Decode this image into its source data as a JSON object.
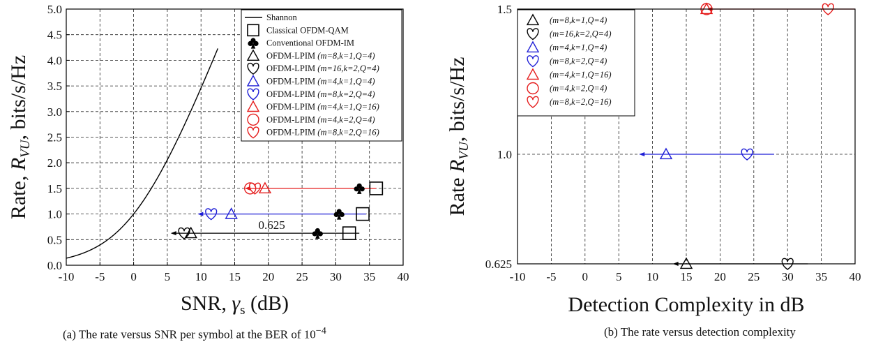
{
  "colors": {
    "black": "#000000",
    "blue": "#1f1fd6",
    "red": "#e51b1b"
  },
  "captions": {
    "a_prefix": "(a) The rate versus SNR per symbol at the BER of 10",
    "a_exp": "−4",
    "b": "(b) The rate versus detection complexity"
  },
  "chart_data": [
    {
      "type": "scatter",
      "ylabel": "Rate, R_VU, bits/s/Hz",
      "xlabel": "SNR, γs (dB)",
      "xlim": [
        -10,
        40
      ],
      "ylim": [
        0,
        5
      ],
      "xticks": [
        "-10",
        "-5",
        "0",
        "5",
        "10",
        "15",
        "20",
        "25",
        "30",
        "35",
        "40"
      ],
      "yticks": [
        "0.0",
        "0.5",
        "1.0",
        "1.5",
        "2.0",
        "2.5",
        "3.0",
        "3.5",
        "4.0",
        "4.5",
        "5.0"
      ],
      "grid": true,
      "legend_position": "top-right",
      "curve": {
        "name": "Shannon",
        "function": "log2(1+snr)"
      },
      "series": [
        {
          "name": "Classical OFDM-QAM",
          "marker": "square",
          "color": "black",
          "points": [
            [
              32.0,
              0.625
            ],
            [
              34.0,
              1.0
            ],
            [
              36.0,
              1.5
            ]
          ]
        },
        {
          "name": "Conventional OFDM-IM",
          "marker": "club",
          "color": "black",
          "points": [
            [
              27.3,
              0.625
            ],
            [
              30.5,
              1.0
            ],
            [
              33.5,
              1.5
            ]
          ]
        },
        {
          "name": "OFDM-LPIM",
          "params": "(m=8,k=1,Q=4)",
          "marker": "triangle",
          "color": "black",
          "points": [
            [
              8.5,
              0.625
            ]
          ]
        },
        {
          "name": "OFDM-LPIM",
          "params": "(m=16,k=2,Q=4)",
          "marker": "heart",
          "color": "black",
          "points": [
            [
              7.5,
              0.625
            ]
          ]
        },
        {
          "name": "OFDM-LPIM",
          "params": "(m=4,k=1,Q=4)",
          "marker": "triangle",
          "color": "blue",
          "points": [
            [
              14.5,
              1.0
            ]
          ]
        },
        {
          "name": "OFDM-LPIM",
          "params": "(m=8,k=2,Q=4)",
          "marker": "heart",
          "color": "blue",
          "points": [
            [
              11.5,
              1.0
            ]
          ]
        },
        {
          "name": "OFDM-LPIM",
          "params": "(m=4,k=1,Q=16)",
          "marker": "triangle",
          "color": "red",
          "points": [
            [
              19.5,
              1.5
            ]
          ]
        },
        {
          "name": "OFDM-LPIM",
          "params": "(m=4,k=2,Q=4)",
          "marker": "circle",
          "color": "red",
          "points": [
            [
              17.3,
              1.5
            ]
          ]
        },
        {
          "name": "OFDM-LPIM",
          "params": "(m=8,k=2,Q=16)",
          "marker": "heart",
          "color": "red",
          "points": [
            [
              18.0,
              1.5
            ]
          ]
        }
      ],
      "arrows": [
        {
          "from": 33.5,
          "to": 5.5,
          "y": 0.625,
          "color": "black"
        },
        {
          "from": 34.5,
          "to": 9.5,
          "y": 1.0,
          "color": "blue"
        },
        {
          "from": 36.0,
          "to": 16.5,
          "y": 1.5,
          "color": "red"
        }
      ],
      "annotations": [
        {
          "text": "0.625",
          "x": 20.5,
          "y": 0.625
        }
      ]
    },
    {
      "type": "scatter",
      "ylabel": "Rate R_VU, bits/s/Hz",
      "xlabel": "Detection Complexity in dB",
      "xlim": [
        -10,
        40
      ],
      "yticks": [
        "0.625",
        "1.0",
        "1.5"
      ],
      "xticks": [
        "-10",
        "-5",
        "0",
        "5",
        "10",
        "15",
        "20",
        "25",
        "30",
        "35",
        "40"
      ],
      "grid": true,
      "legend_position": "top-left",
      "series": [
        {
          "params": "(m=8,k=1,Q=4)",
          "marker": "triangle",
          "color": "black",
          "points": [
            [
              15.0,
              0.625
            ]
          ]
        },
        {
          "params": "(m=16,k=2,Q=4)",
          "marker": "heart",
          "color": "black",
          "points": [
            [
              30.0,
              0.625
            ]
          ]
        },
        {
          "params": "(m=4,k=1,Q=4)",
          "marker": "triangle",
          "color": "blue",
          "points": [
            [
              12.0,
              1.0
            ]
          ]
        },
        {
          "params": "(m=8,k=2,Q=4)",
          "marker": "heart",
          "color": "blue",
          "points": [
            [
              24.0,
              1.0
            ]
          ]
        },
        {
          "params": "(m=4,k=1,Q=16)",
          "marker": "triangle",
          "color": "red",
          "points": [
            [
              18.0,
              1.5
            ]
          ]
        },
        {
          "params": "(m=4,k=2,Q=4)",
          "marker": "circle",
          "color": "red",
          "points": [
            [
              18.0,
              1.5
            ]
          ]
        },
        {
          "params": "(m=8,k=2,Q=16)",
          "marker": "heart",
          "color": "red",
          "points": [
            [
              36.0,
              1.5
            ]
          ]
        }
      ],
      "arrows": [
        {
          "from": 33.0,
          "to": 13.0,
          "y": 0.625,
          "color": "black"
        },
        {
          "from": 28.0,
          "to": 8.0,
          "y": 1.0,
          "color": "blue"
        },
        {
          "from": 40.0,
          "to": 18.0,
          "y": 1.5,
          "color": "red"
        }
      ]
    }
  ]
}
